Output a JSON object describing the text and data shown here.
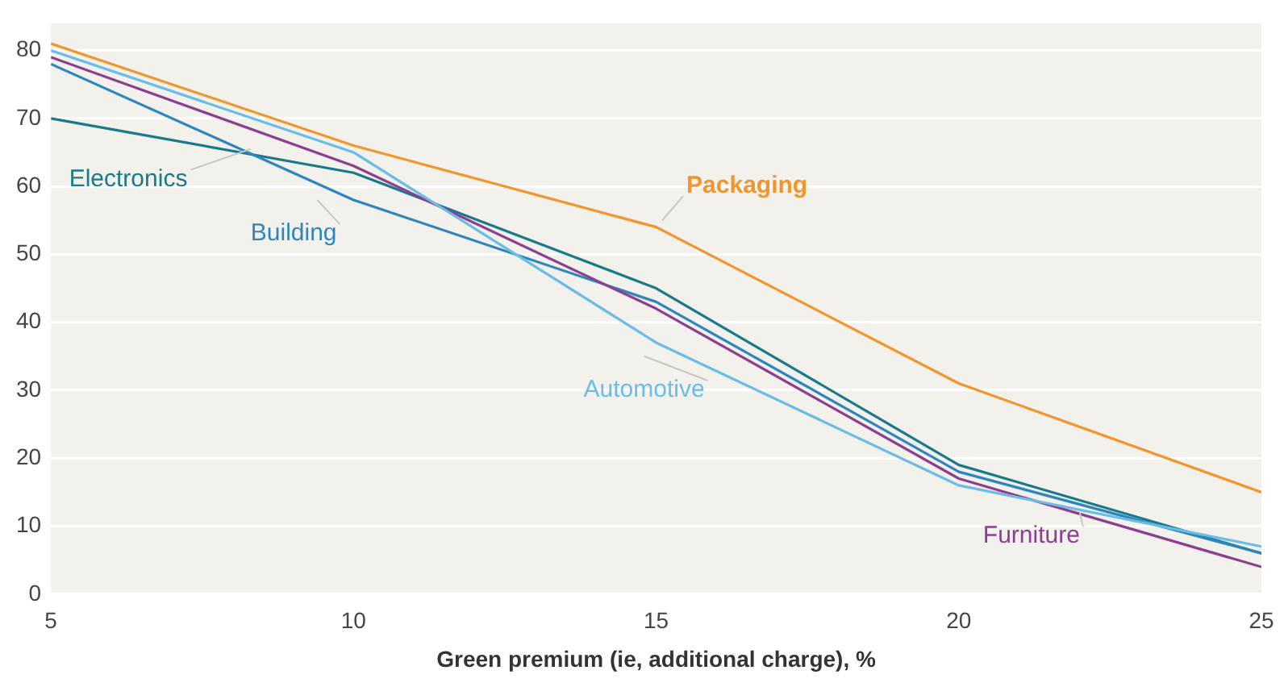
{
  "chart_data": {
    "type": "line",
    "xlabel": "Green premium (ie, additional charge), %",
    "x": [
      5,
      10,
      15,
      20,
      25
    ],
    "series": [
      {
        "name": "Packaging",
        "color": "#f0962d",
        "values": [
          81,
          66,
          54,
          31,
          15
        ]
      },
      {
        "name": "Automotive",
        "color": "#6cbde6",
        "values": [
          80,
          65,
          37,
          16,
          7
        ]
      },
      {
        "name": "Furniture",
        "color": "#8c3f8f",
        "values": [
          79,
          63,
          42,
          17,
          4
        ]
      },
      {
        "name": "Building",
        "color": "#2f86bd",
        "values": [
          78,
          58,
          43,
          18,
          6
        ]
      },
      {
        "name": "Electronics",
        "color": "#1a7a8a",
        "values": [
          70,
          62,
          45,
          19,
          6
        ]
      }
    ],
    "xlim": [
      5,
      25
    ],
    "xticks": [
      5,
      10,
      15,
      20,
      25
    ],
    "ylim": [
      0,
      84
    ],
    "yticks": [
      0,
      10,
      20,
      30,
      40,
      50,
      60,
      70,
      80
    ],
    "grid": "y",
    "legend": false,
    "marker": "none",
    "line_style": "solid"
  }
}
